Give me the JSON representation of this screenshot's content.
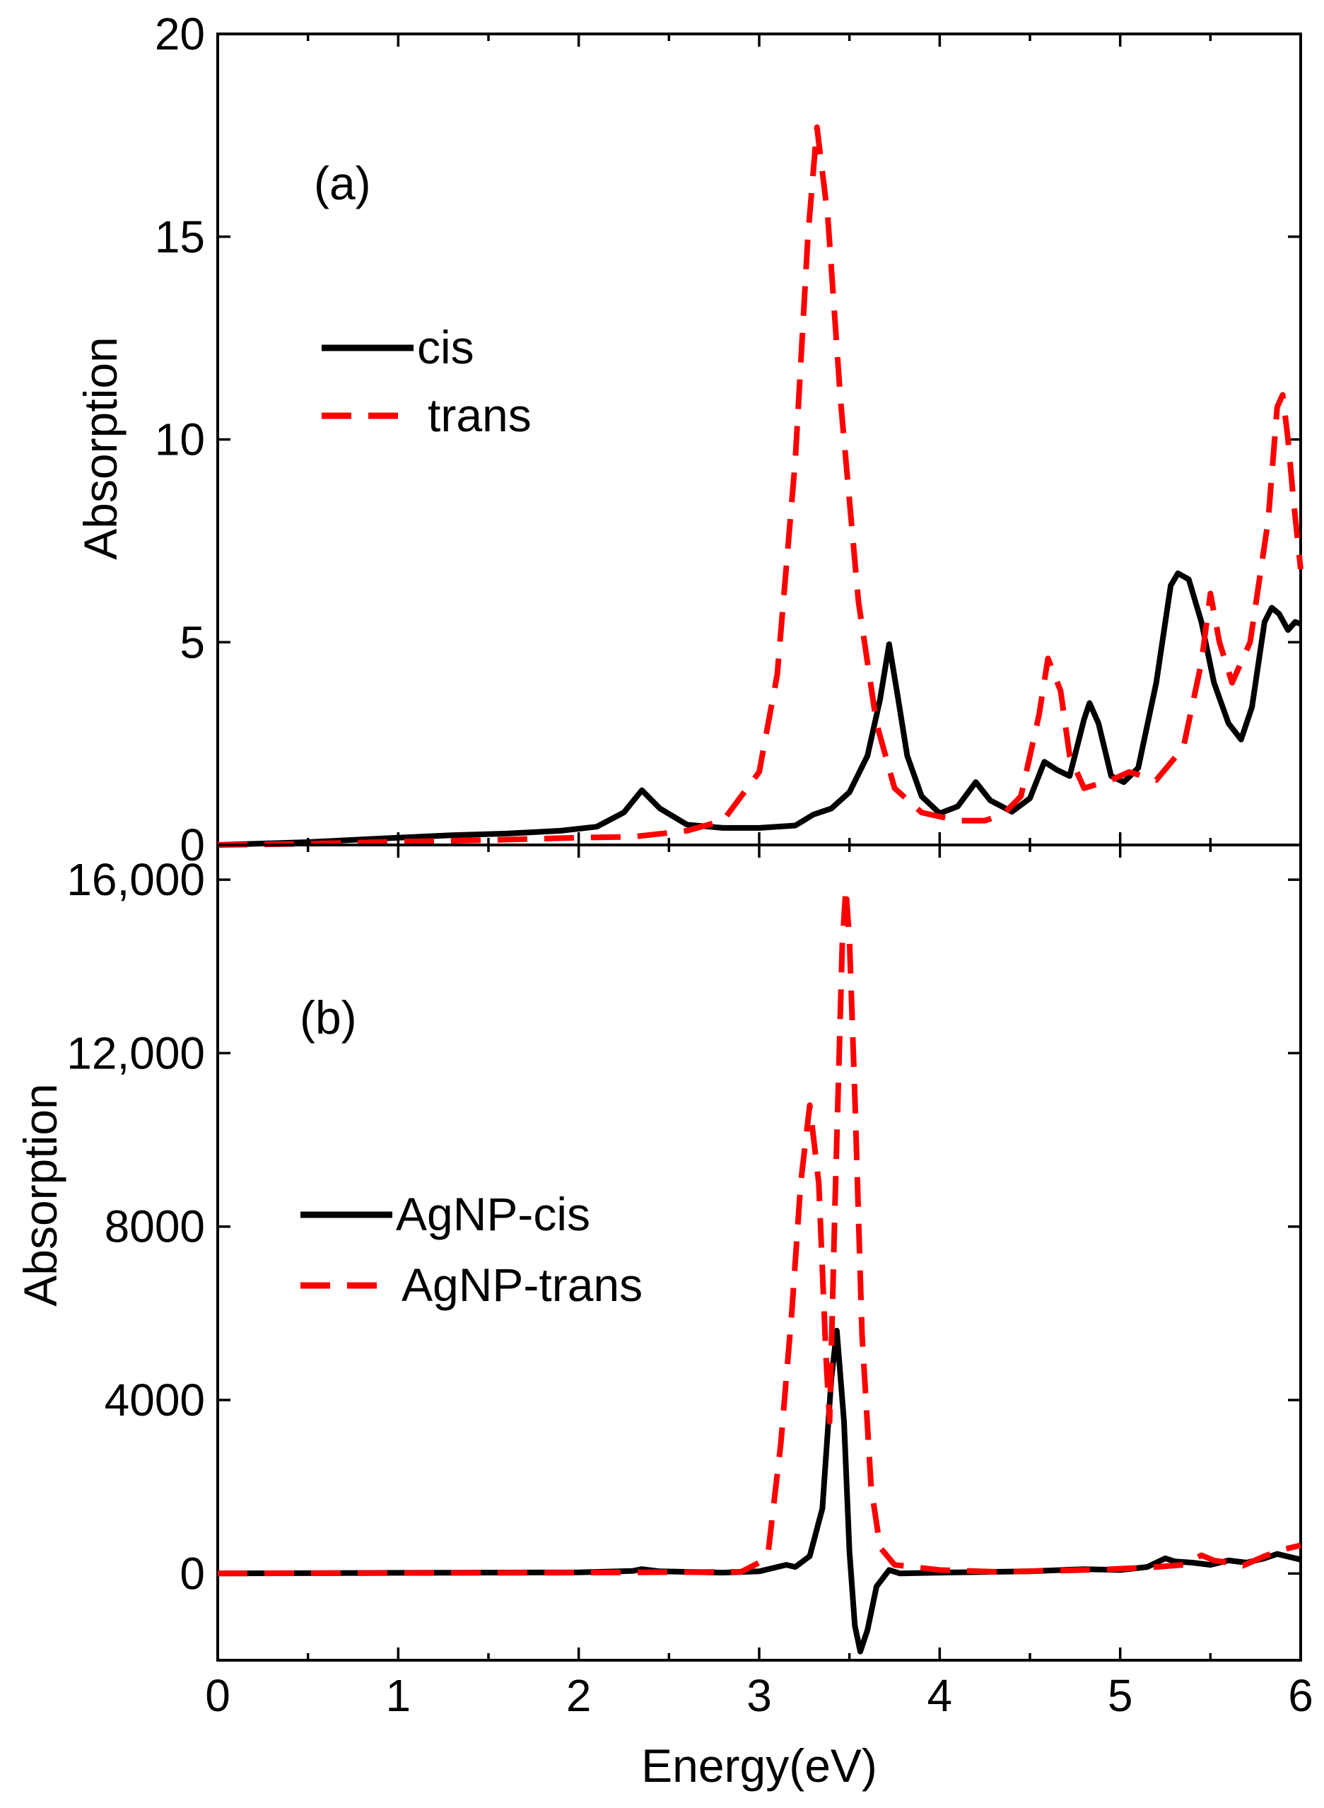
{
  "chart_data": [
    {
      "panel": "a",
      "type": "line",
      "panel_label": "(a)",
      "ylabel": "Absorption",
      "xlim": [
        0,
        6
      ],
      "ylim": [
        0,
        20
      ],
      "yticks": [
        0,
        5,
        10,
        15,
        20
      ],
      "ytick_labels": [
        "0",
        "5",
        "10",
        "15",
        "20"
      ],
      "legend_position": "upper-left",
      "series": [
        {
          "name": "cis",
          "color": "#000000",
          "dash": "solid",
          "points": [
            [
              0,
              0
            ],
            [
              0.5,
              0.07
            ],
            [
              1.0,
              0.18
            ],
            [
              1.3,
              0.24
            ],
            [
              1.6,
              0.28
            ],
            [
              1.9,
              0.35
            ],
            [
              2.1,
              0.45
            ],
            [
              2.25,
              0.8
            ],
            [
              2.35,
              1.35
            ],
            [
              2.45,
              0.9
            ],
            [
              2.6,
              0.5
            ],
            [
              2.8,
              0.42
            ],
            [
              3.0,
              0.42
            ],
            [
              3.2,
              0.48
            ],
            [
              3.3,
              0.75
            ],
            [
              3.4,
              0.9
            ],
            [
              3.5,
              1.3
            ],
            [
              3.6,
              2.2
            ],
            [
              3.67,
              3.6
            ],
            [
              3.72,
              4.95
            ],
            [
              3.77,
              3.6
            ],
            [
              3.82,
              2.2
            ],
            [
              3.9,
              1.2
            ],
            [
              4.0,
              0.78
            ],
            [
              4.1,
              0.95
            ],
            [
              4.2,
              1.55
            ],
            [
              4.28,
              1.1
            ],
            [
              4.4,
              0.82
            ],
            [
              4.5,
              1.15
            ],
            [
              4.58,
              2.05
            ],
            [
              4.65,
              1.85
            ],
            [
              4.72,
              1.7
            ],
            [
              4.8,
              3.1
            ],
            [
              4.83,
              3.5
            ],
            [
              4.88,
              3.0
            ],
            [
              4.95,
              1.7
            ],
            [
              5.02,
              1.55
            ],
            [
              5.1,
              1.9
            ],
            [
              5.2,
              4.0
            ],
            [
              5.28,
              6.4
            ],
            [
              5.32,
              6.7
            ],
            [
              5.38,
              6.55
            ],
            [
              5.45,
              5.5
            ],
            [
              5.52,
              4.0
            ],
            [
              5.6,
              3.0
            ],
            [
              5.67,
              2.6
            ],
            [
              5.73,
              3.4
            ],
            [
              5.8,
              5.5
            ],
            [
              5.84,
              5.85
            ],
            [
              5.88,
              5.7
            ],
            [
              5.93,
              5.3
            ],
            [
              5.97,
              5.5
            ],
            [
              6.0,
              5.45
            ]
          ]
        },
        {
          "name": "trans",
          "color": "#ff0000",
          "dash": "dashed",
          "points": [
            [
              0,
              0
            ],
            [
              0.5,
              0.03
            ],
            [
              1.0,
              0.08
            ],
            [
              1.5,
              0.12
            ],
            [
              2.0,
              0.18
            ],
            [
              2.3,
              0.2
            ],
            [
              2.6,
              0.35
            ],
            [
              2.8,
              0.6
            ],
            [
              3.0,
              1.8
            ],
            [
              3.1,
              4.2
            ],
            [
              3.2,
              9.5
            ],
            [
              3.27,
              15.0
            ],
            [
              3.32,
              17.7
            ],
            [
              3.38,
              15.5
            ],
            [
              3.45,
              11.0
            ],
            [
              3.55,
              6.0
            ],
            [
              3.65,
              3.0
            ],
            [
              3.75,
              1.4
            ],
            [
              3.9,
              0.8
            ],
            [
              4.1,
              0.6
            ],
            [
              4.25,
              0.6
            ],
            [
              4.35,
              0.75
            ],
            [
              4.45,
              1.2
            ],
            [
              4.55,
              3.2
            ],
            [
              4.6,
              4.6
            ],
            [
              4.67,
              3.8
            ],
            [
              4.72,
              2.2
            ],
            [
              4.8,
              1.4
            ],
            [
              4.95,
              1.6
            ],
            [
              5.05,
              1.8
            ],
            [
              5.2,
              1.6
            ],
            [
              5.35,
              2.4
            ],
            [
              5.45,
              4.5
            ],
            [
              5.5,
              6.2
            ],
            [
              5.55,
              5.0
            ],
            [
              5.62,
              4.0
            ],
            [
              5.72,
              5.0
            ],
            [
              5.82,
              8.0
            ],
            [
              5.87,
              10.8
            ],
            [
              5.9,
              11.1
            ],
            [
              5.93,
              10.0
            ],
            [
              5.96,
              8.5
            ],
            [
              6.0,
              6.8
            ]
          ]
        }
      ]
    },
    {
      "panel": "b",
      "type": "line",
      "panel_label": "(b)",
      "ylabel": "Absorption",
      "xlabel": "Energy(eV)",
      "xlim": [
        0,
        6
      ],
      "ylim": [
        -2000,
        16800
      ],
      "xticks": [
        0,
        1,
        2,
        3,
        4,
        5,
        6
      ],
      "xtick_labels": [
        "0",
        "1",
        "2",
        "3",
        "4",
        "5",
        "6"
      ],
      "yticks": [
        0,
        4000,
        8000,
        12000,
        16000
      ],
      "ytick_labels": [
        "0",
        "4000",
        "8000",
        "12,000",
        "16,000"
      ],
      "legend_position": "center-left",
      "series": [
        {
          "name": "AgNP-cis",
          "color": "#000000",
          "dash": "solid",
          "points": [
            [
              0,
              0
            ],
            [
              1.0,
              15
            ],
            [
              2.0,
              25
            ],
            [
              2.3,
              60
            ],
            [
              2.35,
              100
            ],
            [
              2.45,
              50
            ],
            [
              2.8,
              20
            ],
            [
              3.0,
              50
            ],
            [
              3.15,
              200
            ],
            [
              3.2,
              150
            ],
            [
              3.28,
              400
            ],
            [
              3.35,
              1500
            ],
            [
              3.4,
              4500
            ],
            [
              3.43,
              5600
            ],
            [
              3.47,
              3500
            ],
            [
              3.5,
              500
            ],
            [
              3.53,
              -1200
            ],
            [
              3.56,
              -1800
            ],
            [
              3.6,
              -1300
            ],
            [
              3.65,
              -300
            ],
            [
              3.72,
              80
            ],
            [
              3.78,
              0
            ],
            [
              4.0,
              20
            ],
            [
              4.5,
              50
            ],
            [
              4.8,
              100
            ],
            [
              5.0,
              80
            ],
            [
              5.15,
              150
            ],
            [
              5.25,
              350
            ],
            [
              5.3,
              280
            ],
            [
              5.4,
              250
            ],
            [
              5.5,
              200
            ],
            [
              5.6,
              300
            ],
            [
              5.7,
              250
            ],
            [
              5.8,
              350
            ],
            [
              5.87,
              450
            ],
            [
              5.92,
              400
            ],
            [
              6.0,
              320
            ]
          ]
        },
        {
          "name": "AgNP-trans",
          "color": "#ff0000",
          "dash": "dashed",
          "points": [
            [
              0,
              0
            ],
            [
              1.0,
              10
            ],
            [
              2.0,
              20
            ],
            [
              2.5,
              30
            ],
            [
              2.9,
              40
            ],
            [
              3.0,
              250
            ],
            [
              3.05,
              500
            ],
            [
              3.12,
              3000
            ],
            [
              3.18,
              6000
            ],
            [
              3.23,
              9000
            ],
            [
              3.28,
              10800
            ],
            [
              3.33,
              9000
            ],
            [
              3.37,
              5000
            ],
            [
              3.39,
              3500
            ],
            [
              3.42,
              8500
            ],
            [
              3.46,
              14500
            ],
            [
              3.48,
              15800
            ],
            [
              3.5,
              14600
            ],
            [
              3.53,
              11000
            ],
            [
              3.57,
              5500
            ],
            [
              3.62,
              2000
            ],
            [
              3.67,
              600
            ],
            [
              3.75,
              200
            ],
            [
              4.0,
              80
            ],
            [
              4.3,
              40
            ],
            [
              4.6,
              60
            ],
            [
              4.9,
              90
            ],
            [
              5.2,
              150
            ],
            [
              5.35,
              200
            ],
            [
              5.45,
              420
            ],
            [
              5.52,
              300
            ],
            [
              5.6,
              250
            ],
            [
              5.68,
              180
            ],
            [
              5.8,
              400
            ],
            [
              5.9,
              550
            ],
            [
              6.0,
              650
            ]
          ]
        }
      ]
    }
  ]
}
